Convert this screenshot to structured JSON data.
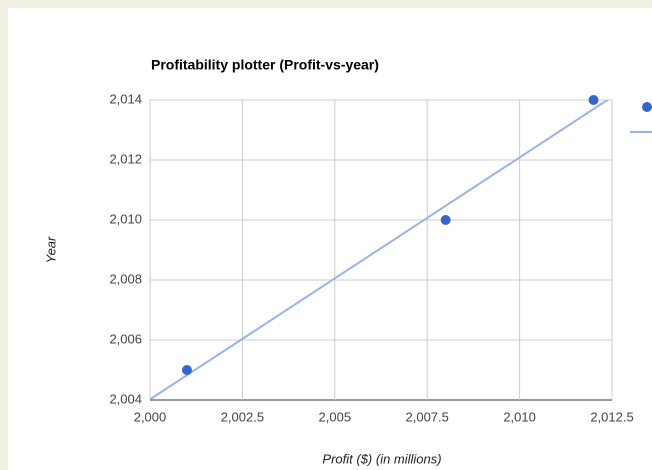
{
  "chart_data": {
    "type": "scatter",
    "title": "Profitability plotter (Profit-vs-year)",
    "x_label": "Profit ($) (in millions)",
    "y_label": "Year",
    "series": [
      {
        "color": "#3366cc",
        "x": [
          2001,
          2008,
          2012
        ],
        "values": [
          2005,
          2010,
          2014
        ]
      }
    ],
    "trendline": true,
    "trendline_color": "#99b3e6",
    "xlim": [
      2000,
      2012.5
    ],
    "xticks": [
      {
        "value": 2000,
        "label": "2,000"
      },
      {
        "value": 2002.5,
        "label": "2,002.5"
      },
      {
        "value": 2005,
        "label": "2,005"
      },
      {
        "value": 2007.5,
        "label": "2,007.5"
      },
      {
        "value": 2010,
        "label": "2,010"
      },
      {
        "value": 2012.5,
        "label": "2,012.5"
      }
    ],
    "ylim": [
      2004,
      2014
    ],
    "yticks": [
      {
        "value": 2004,
        "label": "2,004"
      },
      {
        "value": 2006,
        "label": "2,006"
      },
      {
        "value": 2008,
        "label": "2,008"
      },
      {
        "value": 2010,
        "label": "2,010"
      },
      {
        "value": 2012,
        "label": "2,012"
      },
      {
        "value": 2014,
        "label": "2,014"
      }
    ],
    "grid": true
  }
}
